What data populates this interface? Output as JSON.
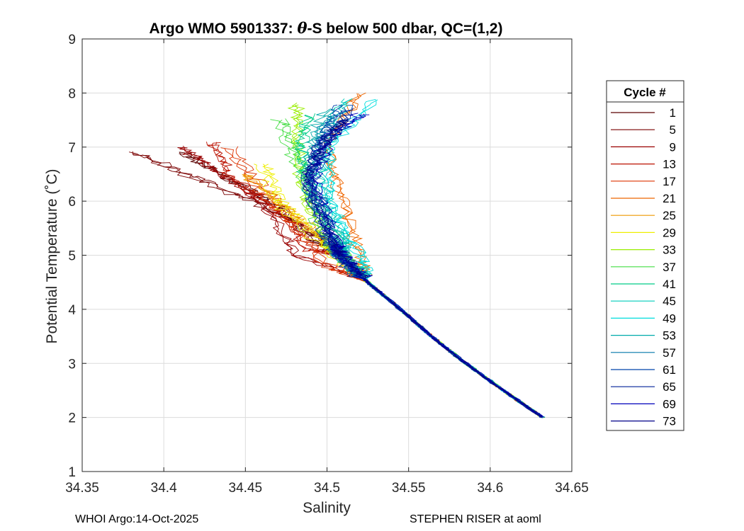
{
  "chart_data": {
    "type": "line",
    "title_prefix": "Argo WMO 5901337: ",
    "title_theta": "θ",
    "title_suffix": "-S below 500 dbar,  QC=(1,2)",
    "xlabel": "Salinity",
    "ylabel": "Potential Temperature (˚C)",
    "xlim": [
      34.35,
      34.65
    ],
    "ylim": [
      1,
      9
    ],
    "xticks": [
      34.35,
      34.4,
      34.45,
      34.5,
      34.55,
      34.6,
      34.65
    ],
    "xtick_labels": [
      "34.35",
      "34.4",
      "34.45",
      "34.5",
      "34.55",
      "34.6",
      "34.65"
    ],
    "yticks": [
      1,
      2,
      3,
      4,
      5,
      6,
      7,
      8,
      9
    ],
    "ytick_labels": [
      "1",
      "2",
      "3",
      "4",
      "5",
      "6",
      "7",
      "8",
      "9"
    ],
    "grid": true,
    "legend_title": "Cycle #",
    "legend_position": "outside-right",
    "deep_curve": {
      "theta": [
        2.0,
        2.5,
        3.0,
        3.5,
        4.0,
        4.5,
        5.0
      ],
      "salinity": [
        34.632,
        34.608,
        34.585,
        34.564,
        34.545,
        34.525,
        34.508
      ]
    },
    "series": [
      {
        "name": "1",
        "color": "#5a0000",
        "upper": [
          [
            34.41,
            6.9
          ],
          [
            34.44,
            6.4
          ],
          [
            34.47,
            5.9
          ],
          [
            34.49,
            5.3
          ]
        ]
      },
      {
        "name": "5",
        "color": "#7a0000",
        "upper": [
          [
            34.38,
            6.9
          ],
          [
            34.42,
            6.4
          ],
          [
            34.46,
            5.9
          ],
          [
            34.49,
            5.4
          ]
        ]
      },
      {
        "name": "9",
        "color": "#990000",
        "upper": [
          [
            34.41,
            7.0
          ],
          [
            34.43,
            6.6
          ],
          [
            34.46,
            6.0
          ],
          [
            34.48,
            5.0
          ]
        ]
      },
      {
        "name": "13",
        "color": "#bb1100",
        "upper": [
          [
            34.43,
            7.1
          ],
          [
            34.44,
            6.5
          ],
          [
            34.47,
            5.8
          ],
          [
            34.49,
            5.1
          ]
        ]
      },
      {
        "name": "17",
        "color": "#dd3300",
        "upper": [
          [
            34.44,
            7.0
          ],
          [
            34.46,
            6.2
          ],
          [
            34.48,
            5.6
          ],
          [
            34.5,
            4.8
          ]
        ]
      },
      {
        "name": "21",
        "color": "#ee6600",
        "upper": [
          [
            34.52,
            8.0
          ],
          [
            34.5,
            7.0
          ],
          [
            34.51,
            6.0
          ],
          [
            34.52,
            5.0
          ]
        ]
      },
      {
        "name": "25",
        "color": "#ee9900",
        "upper": [
          [
            34.45,
            6.5
          ],
          [
            34.47,
            6.0
          ],
          [
            34.49,
            5.5
          ],
          [
            34.51,
            4.9
          ]
        ]
      },
      {
        "name": "29",
        "color": "#eeee00",
        "upper": [
          [
            34.46,
            6.7
          ],
          [
            34.47,
            6.0
          ],
          [
            34.49,
            5.4
          ],
          [
            34.52,
            4.6
          ]
        ]
      },
      {
        "name": "33",
        "color": "#99ee00",
        "upper": [
          [
            34.48,
            7.8
          ],
          [
            34.48,
            7.0
          ],
          [
            34.485,
            6.0
          ],
          [
            34.5,
            5.2
          ]
        ]
      },
      {
        "name": "37",
        "color": "#44dd44",
        "upper": [
          [
            34.47,
            7.5
          ],
          [
            34.48,
            6.8
          ],
          [
            34.49,
            6.0
          ],
          [
            34.5,
            5.2
          ]
        ]
      },
      {
        "name": "41",
        "color": "#00cc88",
        "upper": [
          [
            34.49,
            7.6
          ],
          [
            34.485,
            7.0
          ],
          [
            34.49,
            6.2
          ],
          [
            34.51,
            5.2
          ]
        ]
      },
      {
        "name": "45",
        "color": "#00ccbb",
        "upper": [
          [
            34.51,
            7.9
          ],
          [
            34.5,
            7.2
          ],
          [
            34.495,
            6.3
          ],
          [
            34.51,
            5.3
          ]
        ]
      },
      {
        "name": "49",
        "color": "#00dddd",
        "upper": [
          [
            34.53,
            7.9
          ],
          [
            34.5,
            7.0
          ],
          [
            34.5,
            6.0
          ],
          [
            34.52,
            5.0
          ]
        ]
      },
      {
        "name": "53",
        "color": "#00aaaa",
        "upper": [
          [
            34.5,
            7.7
          ],
          [
            34.49,
            7.0
          ],
          [
            34.49,
            6.2
          ],
          [
            34.51,
            5.2
          ]
        ]
      },
      {
        "name": "57",
        "color": "#0077aa",
        "upper": [
          [
            34.505,
            7.6
          ],
          [
            34.495,
            7.0
          ],
          [
            34.49,
            6.3
          ],
          [
            34.505,
            5.3
          ]
        ]
      },
      {
        "name": "61",
        "color": "#0044aa",
        "upper": [
          [
            34.51,
            7.8
          ],
          [
            34.5,
            7.1
          ],
          [
            34.49,
            6.4
          ],
          [
            34.5,
            5.4
          ]
        ]
      },
      {
        "name": "65",
        "color": "#002299",
        "upper": [
          [
            34.515,
            7.7
          ],
          [
            34.5,
            7.0
          ],
          [
            34.49,
            6.5
          ],
          [
            34.505,
            5.3
          ]
        ]
      },
      {
        "name": "69",
        "color": "#0000bb",
        "upper": [
          [
            34.52,
            7.6
          ],
          [
            34.5,
            7.2
          ],
          [
            34.49,
            6.4
          ],
          [
            34.505,
            5.2
          ]
        ]
      },
      {
        "name": "73",
        "color": "#000088",
        "upper": [
          [
            34.51,
            7.5
          ],
          [
            34.495,
            7.0
          ],
          [
            34.487,
            6.3
          ],
          [
            34.505,
            5.2
          ]
        ]
      }
    ]
  },
  "footer": {
    "left": "WHOI Argo:14-Oct-2025",
    "right": "STEPHEN RISER at aoml"
  }
}
